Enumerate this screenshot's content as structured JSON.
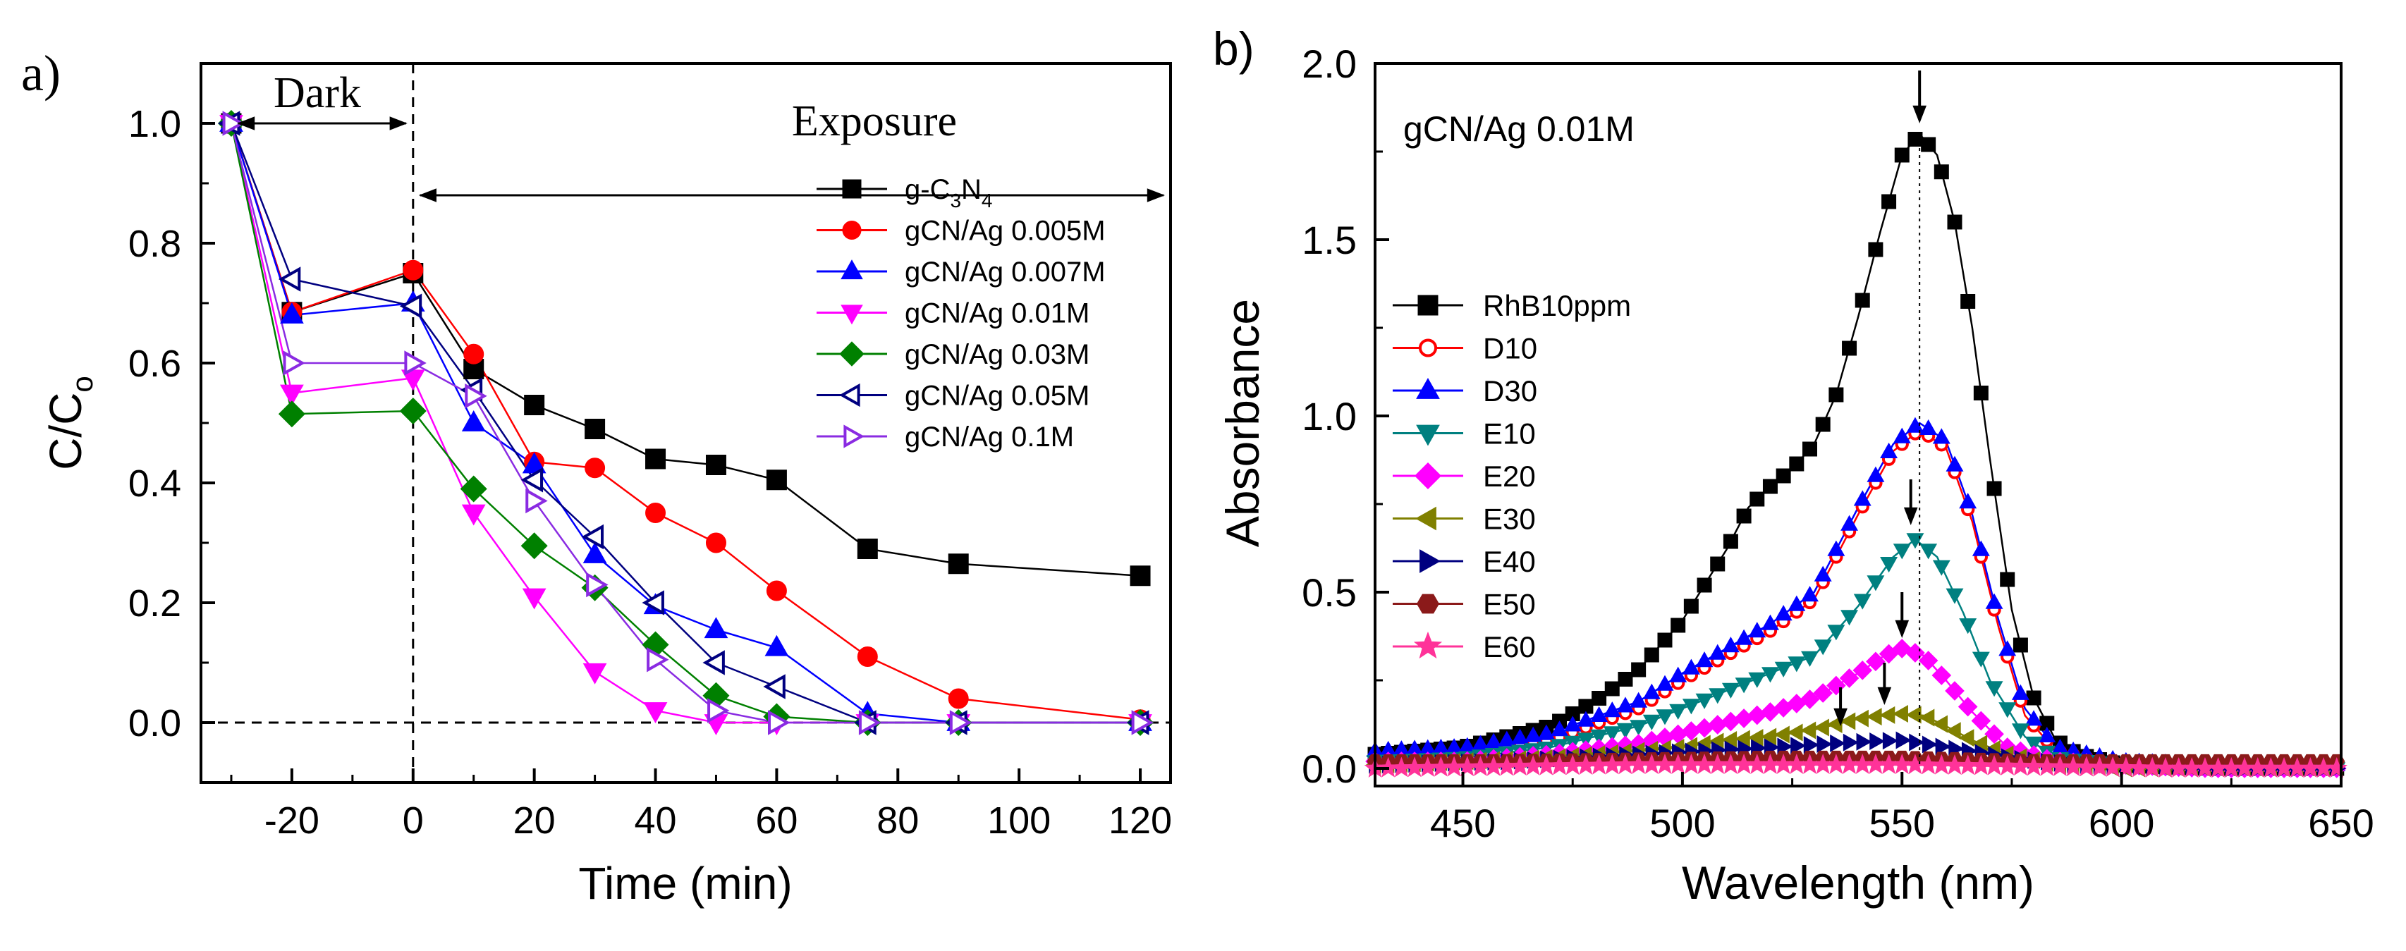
{
  "chart_data": [
    {
      "type": "line",
      "panel_label": "a)",
      "xlabel": "Time (min)",
      "ylabel_main": "C/C",
      "ylabel_sub": "o",
      "xlim": [
        -35,
        125
      ],
      "ylim": [
        -0.1,
        1.1
      ],
      "xticks": [
        -20,
        0,
        20,
        40,
        60,
        80,
        100,
        120
      ],
      "xtick_labels": [
        "-20",
        "0",
        "20",
        "40",
        "60",
        "80",
        "100",
        "120"
      ],
      "yticks": [
        0.0,
        0.2,
        0.4,
        0.6,
        0.8,
        1.0
      ],
      "ytick_labels": [
        "0.0",
        "0.2",
        "0.4",
        "0.6",
        "0.8",
        "1.0"
      ],
      "annotations": {
        "dark": "Dark",
        "exposure": "Exposure"
      },
      "legend_position": "top-right",
      "series": [
        {
          "name": "g-C3N4",
          "legend_parts": [
            "g-C",
            "3",
            "N",
            "4"
          ],
          "marker": "square",
          "color": "#000000",
          "fill": "#000000",
          "x": [
            -30,
            -20,
            0,
            10,
            20,
            30,
            40,
            50,
            60,
            75,
            90,
            120
          ],
          "y": [
            1.0,
            0.685,
            0.75,
            0.59,
            0.53,
            0.49,
            0.44,
            0.43,
            0.405,
            0.29,
            0.265,
            0.245
          ]
        },
        {
          "name": "gCN/Ag 0.005M",
          "marker": "circle",
          "color": "#ff0000",
          "fill": "#ff0000",
          "x": [
            -30,
            -20,
            0,
            10,
            20,
            30,
            40,
            50,
            60,
            75,
            90,
            120
          ],
          "y": [
            1.0,
            0.685,
            0.755,
            0.615,
            0.435,
            0.425,
            0.35,
            0.3,
            0.22,
            0.11,
            0.04,
            0.005
          ]
        },
        {
          "name": "gCN/Ag 0.007M",
          "marker": "triangle-up",
          "color": "#0000ff",
          "fill": "#0000ff",
          "x": [
            -30,
            -20,
            0,
            10,
            20,
            30,
            40,
            50,
            60,
            75,
            90,
            120
          ],
          "y": [
            1.0,
            0.68,
            0.7,
            0.5,
            0.43,
            0.28,
            0.195,
            0.155,
            0.125,
            0.015,
            0.0,
            0.0
          ]
        },
        {
          "name": "gCN/Ag 0.01M",
          "marker": "triangle-down",
          "color": "#ff00ff",
          "fill": "#ff00ff",
          "x": [
            -30,
            -20,
            0,
            10,
            20,
            30,
            40,
            50,
            60,
            75,
            90,
            120
          ],
          "y": [
            1.0,
            0.55,
            0.575,
            0.35,
            0.21,
            0.085,
            0.02,
            0.0,
            0.0,
            0.0,
            0.0,
            0.0
          ]
        },
        {
          "name": "gCN/Ag 0.03M",
          "marker": "diamond",
          "color": "#008000",
          "fill": "#008000",
          "x": [
            -30,
            -20,
            0,
            10,
            20,
            30,
            40,
            50,
            60,
            75,
            90,
            120
          ],
          "y": [
            1.0,
            0.515,
            0.52,
            0.39,
            0.295,
            0.225,
            0.13,
            0.045,
            0.01,
            0.0,
            0.0,
            0.0
          ]
        },
        {
          "name": "gCN/Ag 0.05M",
          "marker": "triangle-left-open",
          "color": "#000080",
          "fill": "none",
          "x": [
            -30,
            -20,
            0,
            10,
            20,
            30,
            40,
            50,
            60,
            75,
            90,
            120
          ],
          "y": [
            1.0,
            0.74,
            0.695,
            0.555,
            0.405,
            0.31,
            0.2,
            0.1,
            0.06,
            0.0,
            0.0,
            0.0
          ]
        },
        {
          "name": "gCN/Ag 0.1M",
          "marker": "triangle-right-open",
          "color": "#8a2be2",
          "fill": "none",
          "x": [
            -30,
            -20,
            0,
            10,
            20,
            30,
            40,
            50,
            60,
            75,
            90,
            120
          ],
          "y": [
            1.0,
            0.6,
            0.6,
            0.545,
            0.37,
            0.23,
            0.105,
            0.02,
            0.0,
            0.0,
            0.0,
            0.0
          ]
        }
      ]
    },
    {
      "type": "line",
      "panel_label": "b)",
      "title": "gCN/Ag 0.01M",
      "xlabel": "Wavelength (nm)",
      "ylabel": "Absorbance",
      "xlim": [
        430,
        650
      ],
      "ylim": [
        -0.05,
        2.0
      ],
      "xticks": [
        450,
        500,
        550,
        600,
        650
      ],
      "xtick_labels": [
        "450",
        "500",
        "550",
        "600",
        "650"
      ],
      "yticks": [
        0.0,
        0.5,
        1.0,
        1.5,
        2.0
      ],
      "ytick_labels": [
        "0.0",
        "0.5",
        "1.0",
        "1.5",
        "2.0"
      ],
      "peak_wavelength": 554,
      "arrows": [
        {
          "x": 554,
          "y_from": 1.98,
          "y_to": 1.83
        },
        {
          "x": 552,
          "y_from": 0.82,
          "y_to": 0.69
        },
        {
          "x": 550,
          "y_from": 0.5,
          "y_to": 0.37
        },
        {
          "x": 546,
          "y_from": 0.3,
          "y_to": 0.18
        },
        {
          "x": 536,
          "y_from": 0.23,
          "y_to": 0.12
        }
      ],
      "legend_position": "center-left",
      "series": [
        {
          "name": "RhB10ppm",
          "marker": "square",
          "color": "#000000",
          "fill": "#000000",
          "x": [
            430,
            450,
            470,
            480,
            490,
            500,
            510,
            515,
            520,
            525,
            530,
            535,
            540,
            545,
            550,
            554,
            558,
            562,
            566,
            570,
            575,
            580,
            585,
            590,
            600,
            620,
            650
          ],
          "y": [
            0.04,
            0.06,
            0.12,
            0.19,
            0.28,
            0.42,
            0.62,
            0.74,
            0.8,
            0.85,
            0.92,
            1.06,
            1.28,
            1.52,
            1.74,
            1.8,
            1.74,
            1.55,
            1.25,
            0.88,
            0.45,
            0.2,
            0.08,
            0.04,
            0.01,
            0.0,
            0.0
          ]
        },
        {
          "name": "D10",
          "marker": "circle-open",
          "color": "#ff0000",
          "fill": "none",
          "x": [
            430,
            450,
            470,
            490,
            500,
            510,
            520,
            530,
            540,
            548,
            554,
            560,
            566,
            572,
            578,
            585,
            600,
            620,
            650
          ],
          "y": [
            0.03,
            0.04,
            0.08,
            0.17,
            0.25,
            0.32,
            0.39,
            0.48,
            0.72,
            0.9,
            0.96,
            0.91,
            0.7,
            0.4,
            0.15,
            0.05,
            0.01,
            0.0,
            0.0
          ]
        },
        {
          "name": "D30",
          "marker": "triangle-up",
          "color": "#0000ff",
          "fill": "#0000ff",
          "x": [
            430,
            450,
            470,
            490,
            500,
            510,
            520,
            530,
            540,
            548,
            554,
            560,
            566,
            572,
            578,
            585,
            600,
            620,
            650
          ],
          "y": [
            0.05,
            0.06,
            0.1,
            0.19,
            0.27,
            0.34,
            0.41,
            0.5,
            0.74,
            0.92,
            0.98,
            0.93,
            0.72,
            0.42,
            0.17,
            0.06,
            0.02,
            0.01,
            0.01
          ]
        },
        {
          "name": "E10",
          "marker": "triangle-down",
          "color": "#008080",
          "fill": "#008080",
          "x": [
            430,
            450,
            470,
            490,
            500,
            510,
            520,
            530,
            540,
            548,
            553,
            558,
            564,
            570,
            578,
            585,
            600,
            620,
            650
          ],
          "y": [
            0.02,
            0.03,
            0.06,
            0.12,
            0.17,
            0.22,
            0.27,
            0.32,
            0.46,
            0.6,
            0.65,
            0.6,
            0.44,
            0.25,
            0.09,
            0.03,
            0.01,
            0.0,
            0.0
          ]
        },
        {
          "name": "E20",
          "marker": "diamond",
          "color": "#ff00ff",
          "fill": "#ff00ff",
          "x": [
            430,
            450,
            470,
            490,
            500,
            510,
            520,
            530,
            540,
            546,
            550,
            555,
            560,
            566,
            574,
            585,
            600,
            620,
            650
          ],
          "y": [
            0.02,
            0.02,
            0.04,
            0.07,
            0.1,
            0.13,
            0.16,
            0.2,
            0.27,
            0.32,
            0.34,
            0.32,
            0.25,
            0.16,
            0.06,
            0.02,
            0.01,
            0.0,
            0.0
          ]
        },
        {
          "name": "E30",
          "marker": "triangle-left",
          "color": "#808000",
          "fill": "#808000",
          "x": [
            430,
            450,
            470,
            490,
            500,
            510,
            520,
            530,
            540,
            546,
            550,
            555,
            560,
            566,
            574,
            585,
            600,
            620,
            650
          ],
          "y": [
            0.01,
            0.02,
            0.03,
            0.05,
            0.06,
            0.08,
            0.09,
            0.11,
            0.14,
            0.15,
            0.155,
            0.15,
            0.12,
            0.08,
            0.04,
            0.01,
            0.0,
            0.0,
            0.0
          ]
        },
        {
          "name": "E40",
          "marker": "triangle-right",
          "color": "#000080",
          "fill": "#000080",
          "x": [
            430,
            460,
            490,
            520,
            540,
            550,
            560,
            575,
            590,
            620,
            650
          ],
          "y": [
            0.01,
            0.02,
            0.04,
            0.06,
            0.075,
            0.08,
            0.06,
            0.03,
            0.01,
            0.0,
            0.0
          ]
        },
        {
          "name": "E50",
          "marker": "hexagon",
          "color": "#8b1a1a",
          "fill": "#8b1a1a",
          "x": [
            430,
            460,
            490,
            520,
            550,
            580,
            610,
            650
          ],
          "y": [
            0.02,
            0.02,
            0.025,
            0.03,
            0.03,
            0.02,
            0.02,
            0.02
          ]
        },
        {
          "name": "E60",
          "marker": "star",
          "color": "#ff3399",
          "fill": "#ff3399",
          "x": [
            430,
            460,
            490,
            520,
            550,
            580,
            610,
            650
          ],
          "y": [
            0.0,
            0.005,
            0.01,
            0.01,
            0.01,
            0.005,
            0.0,
            0.0
          ]
        }
      ]
    }
  ]
}
